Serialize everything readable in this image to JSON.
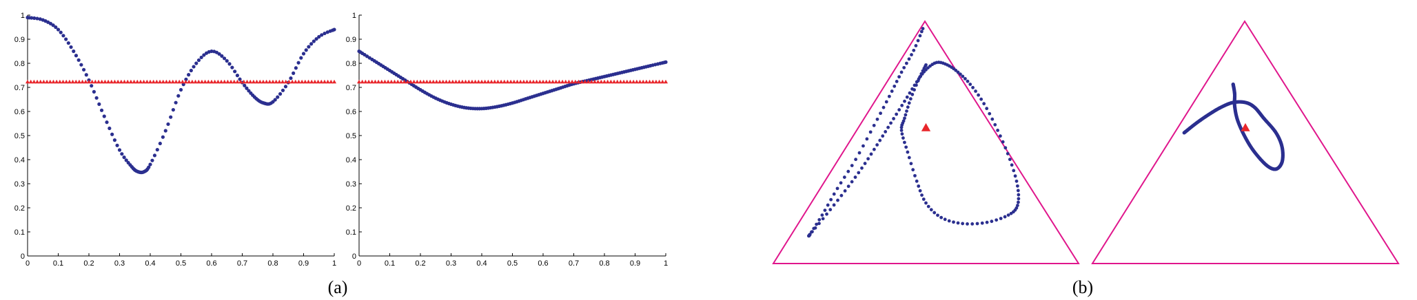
{
  "captions": {
    "a": "(a)",
    "b": "(b)"
  },
  "colors": {
    "curve": "#2b2f8f",
    "reference": "#e8262b",
    "triangle": "#e0168c"
  },
  "chart_data": [
    {
      "type": "scatter",
      "title": "",
      "xlabel": "",
      "ylabel": "",
      "xlim": [
        0,
        1
      ],
      "ylim": [
        0,
        1
      ],
      "xticks": [
        "0",
        "0.1",
        "0.2",
        "0.3",
        "0.4",
        "0.5",
        "0.6",
        "0.7",
        "0.8",
        "0.9",
        "1"
      ],
      "yticks": [
        "0",
        "0.1",
        "0.2",
        "0.3",
        "0.4",
        "0.5",
        "0.6",
        "0.7",
        "0.8",
        "0.9",
        "1"
      ],
      "grid": false,
      "series": [
        {
          "marker": "dot",
          "color": "#2b2f8f",
          "points": [
            [
              0.0,
              0.99
            ],
            [
              0.05,
              0.98
            ],
            [
              0.1,
              0.94
            ],
            [
              0.15,
              0.85
            ],
            [
              0.2,
              0.73
            ],
            [
              0.25,
              0.58
            ],
            [
              0.3,
              0.44
            ],
            [
              0.34,
              0.37
            ],
            [
              0.36,
              0.35
            ],
            [
              0.38,
              0.35
            ],
            [
              0.4,
              0.38
            ],
            [
              0.45,
              0.52
            ],
            [
              0.5,
              0.69
            ],
            [
              0.55,
              0.8
            ],
            [
              0.6,
              0.85
            ],
            [
              0.65,
              0.81
            ],
            [
              0.7,
              0.72
            ],
            [
              0.74,
              0.66
            ],
            [
              0.77,
              0.635
            ],
            [
              0.8,
              0.64
            ],
            [
              0.85,
              0.72
            ],
            [
              0.9,
              0.84
            ],
            [
              0.95,
              0.91
            ],
            [
              1.0,
              0.94
            ]
          ]
        },
        {
          "marker": "triangle",
          "color": "#e8262b",
          "points": [
            [
              0.0,
              0.723
            ],
            [
              1.0,
              0.723
            ]
          ]
        }
      ]
    },
    {
      "type": "scatter",
      "title": "",
      "xlabel": "",
      "ylabel": "",
      "xlim": [
        0,
        1
      ],
      "ylim": [
        0,
        1
      ],
      "xticks": [
        "0",
        "0.1",
        "0.2",
        "0.3",
        "0.4",
        "0.5",
        "0.6",
        "0.7",
        "0.8",
        "0.9",
        "1"
      ],
      "yticks": [
        "0",
        "0.1",
        "0.2",
        "0.3",
        "0.4",
        "0.5",
        "0.6",
        "0.7",
        "0.8",
        "0.9",
        "1"
      ],
      "grid": false,
      "series": [
        {
          "marker": "dot",
          "color": "#2b2f8f",
          "points": [
            [
              0.0,
              0.85
            ],
            [
              0.05,
              0.81
            ],
            [
              0.1,
              0.77
            ],
            [
              0.15,
              0.73
            ],
            [
              0.2,
              0.69
            ],
            [
              0.25,
              0.655
            ],
            [
              0.3,
              0.63
            ],
            [
              0.35,
              0.615
            ],
            [
              0.4,
              0.612
            ],
            [
              0.45,
              0.62
            ],
            [
              0.5,
              0.635
            ],
            [
              0.55,
              0.655
            ],
            [
              0.6,
              0.675
            ],
            [
              0.65,
              0.695
            ],
            [
              0.7,
              0.715
            ],
            [
              0.75,
              0.73
            ],
            [
              0.8,
              0.745
            ],
            [
              0.85,
              0.76
            ],
            [
              0.9,
              0.775
            ],
            [
              0.95,
              0.79
            ],
            [
              1.0,
              0.805
            ]
          ]
        },
        {
          "marker": "triangle",
          "color": "#e8262b",
          "points": [
            [
              0.0,
              0.723
            ],
            [
              1.0,
              0.723
            ]
          ]
        }
      ]
    },
    {
      "type": "scatter",
      "subtype": "simplex",
      "title": "",
      "series": [
        {
          "marker": "dot",
          "color": "#2b2f8f",
          "points": [
            [
              0.49,
              0.97
            ],
            [
              0.46,
              0.88
            ],
            [
              0.42,
              0.79
            ],
            [
              0.38,
              0.69
            ],
            [
              0.33,
              0.57
            ],
            [
              0.27,
              0.43
            ],
            [
              0.21,
              0.31
            ],
            [
              0.16,
              0.2
            ],
            [
              0.12,
              0.12
            ],
            [
              0.12,
              0.12
            ],
            [
              0.12,
              0.12
            ],
            [
              0.175,
              0.204
            ],
            [
              0.235,
              0.3
            ],
            [
              0.29,
              0.394
            ],
            [
              0.34,
              0.49
            ],
            [
              0.385,
              0.58
            ],
            [
              0.43,
              0.67
            ],
            [
              0.47,
              0.75
            ],
            [
              0.5,
              0.8
            ],
            [
              0.535,
              0.83
            ],
            [
              0.57,
              0.82
            ],
            [
              0.605,
              0.79
            ],
            [
              0.645,
              0.74
            ],
            [
              0.69,
              0.66
            ],
            [
              0.735,
              0.55
            ],
            [
              0.775,
              0.43
            ],
            [
              0.8,
              0.32
            ],
            [
              0.8,
              0.24
            ],
            [
              0.77,
              0.2
            ],
            [
              0.7,
              0.17
            ],
            [
              0.62,
              0.165
            ],
            [
              0.55,
              0.19
            ],
            [
              0.5,
              0.25
            ],
            [
              0.47,
              0.34
            ],
            [
              0.44,
              0.46
            ],
            [
              0.42,
              0.55
            ],
            [
              0.43,
              0.6
            ],
            [
              0.45,
              0.68
            ],
            [
              0.48,
              0.77
            ],
            [
              0.5,
              0.82
            ]
          ]
        },
        {
          "marker": "triangle",
          "color": "#e8262b",
          "points": [
            [
              0.5,
              0.56
            ]
          ]
        }
      ]
    },
    {
      "type": "scatter",
      "subtype": "simplex",
      "title": "",
      "series": [
        {
          "marker": "dot",
          "color": "#2b2f8f",
          "points": [
            [
              0.3,
              0.54
            ],
            [
              0.34,
              0.58
            ],
            [
              0.38,
              0.615
            ],
            [
              0.42,
              0.645
            ],
            [
              0.46,
              0.665
            ],
            [
              0.5,
              0.665
            ],
            [
              0.53,
              0.645
            ],
            [
              0.56,
              0.6
            ],
            [
              0.6,
              0.54
            ],
            [
              0.62,
              0.48
            ],
            [
              0.62,
              0.42
            ],
            [
              0.6,
              0.39
            ],
            [
              0.57,
              0.405
            ],
            [
              0.53,
              0.46
            ],
            [
              0.5,
              0.52
            ],
            [
              0.475,
              0.59
            ],
            [
              0.465,
              0.65
            ],
            [
              0.465,
              0.7
            ],
            [
              0.46,
              0.74
            ]
          ]
        },
        {
          "marker": "triangle",
          "color": "#e8262b",
          "points": [
            [
              0.5,
              0.56
            ]
          ]
        }
      ]
    }
  ]
}
